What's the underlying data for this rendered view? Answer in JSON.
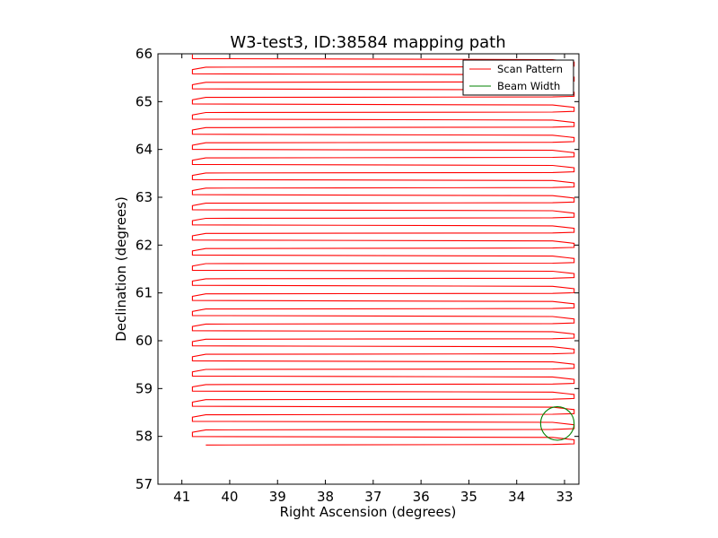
{
  "chart_data": {
    "type": "line",
    "title": "W3-test3, ID:38584 mapping path",
    "xlabel": "Right Ascension (degrees)",
    "ylabel": "Declination (degrees)",
    "xlim": [
      41.5,
      32.7
    ],
    "ylim": [
      57,
      66
    ],
    "x_ticks": [
      41,
      40,
      39,
      38,
      37,
      36,
      35,
      34,
      33
    ],
    "y_ticks": [
      57,
      58,
      59,
      60,
      61,
      62,
      63,
      64,
      65,
      66
    ],
    "grid": false,
    "legend_position": "top-right",
    "series": [
      {
        "name": "Scan Pattern",
        "color": "#ff0000",
        "kind": "raster_scan",
        "dec_start": 57.82,
        "dec_end": 65.94,
        "row_spacing": 0.158,
        "ra_west": 40.78,
        "ra_east": 32.8,
        "ra_east_lag": 33.25,
        "ra_west_lag": 40.5
      },
      {
        "name": "Beam Width",
        "color": "#008000",
        "kind": "circle",
        "center": [
          33.15,
          58.27
        ],
        "radius": 0.35
      }
    ]
  }
}
